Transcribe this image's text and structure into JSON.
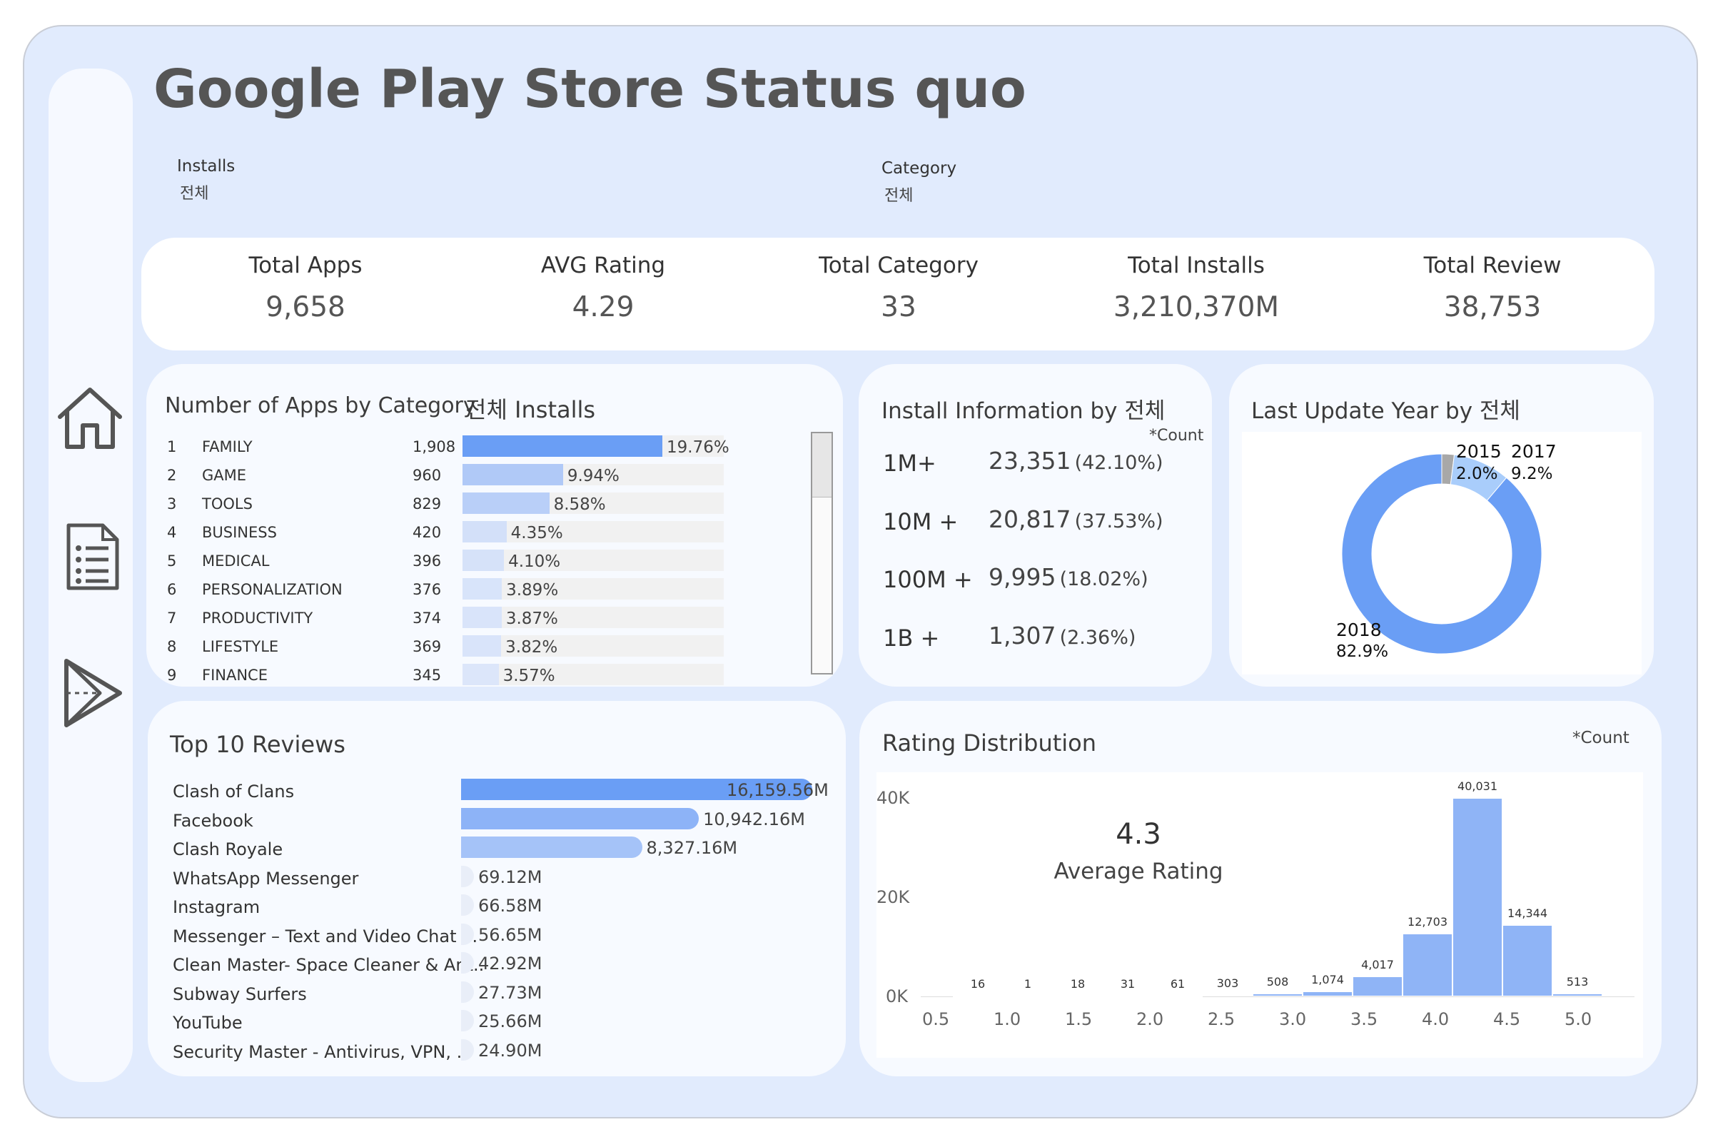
{
  "header": {
    "title": "Google Play Store Status quo"
  },
  "filters": [
    {
      "label": "Installs",
      "value": "전체"
    },
    {
      "label": "Category",
      "value": "전체"
    }
  ],
  "kpis": [
    {
      "label": "Total Apps",
      "value": "9,658"
    },
    {
      "label": "AVG Rating",
      "value": "4.29"
    },
    {
      "label": "Total Category",
      "value": "33"
    },
    {
      "label": "Total Installs",
      "value": "3,210,370M"
    },
    {
      "label": "Total Review",
      "value": "38,753"
    }
  ],
  "sidebar": {
    "icons": [
      "home-icon",
      "list-document-icon",
      "play-store-icon"
    ]
  },
  "category_panel": {
    "title": "Number of Apps by Category",
    "subtitle": "전체 Installs",
    "rows": [
      {
        "rank": "1",
        "name": "FAMILY",
        "count": "1,908",
        "pct_label": "19.76%",
        "pct": 19.76
      },
      {
        "rank": "2",
        "name": "GAME",
        "count": "960",
        "pct_label": "9.94%",
        "pct": 9.94
      },
      {
        "rank": "3",
        "name": "TOOLS",
        "count": "829",
        "pct_label": "8.58%",
        "pct": 8.58
      },
      {
        "rank": "4",
        "name": "BUSINESS",
        "count": "420",
        "pct_label": "4.35%",
        "pct": 4.35
      },
      {
        "rank": "5",
        "name": "MEDICAL",
        "count": "396",
        "pct_label": "4.10%",
        "pct": 4.1
      },
      {
        "rank": "6",
        "name": "PERSONALIZATION",
        "count": "376",
        "pct_label": "3.89%",
        "pct": 3.89
      },
      {
        "rank": "7",
        "name": "PRODUCTIVITY",
        "count": "374",
        "pct_label": "3.87%",
        "pct": 3.87
      },
      {
        "rank": "8",
        "name": "LIFESTYLE",
        "count": "369",
        "pct_label": "3.82%",
        "pct": 3.82
      },
      {
        "rank": "9",
        "name": "FINANCE",
        "count": "345",
        "pct_label": "3.57%",
        "pct": 3.57
      }
    ],
    "colors": [
      "#6a9ef5",
      "#b0c9f7",
      "#b9cff8",
      "#d3e0f9",
      "#d6e2f9",
      "#d8e4fa",
      "#d9e4fa",
      "#d9e4fa",
      "#dce6fa"
    ]
  },
  "install_panel": {
    "title": "Install Information by 전체",
    "note": "*Count",
    "rows": [
      {
        "label": "1M+",
        "value": "23,351",
        "pct": "(42.10%)"
      },
      {
        "label": "10M +",
        "value": "20,817",
        "pct": "(37.53%)"
      },
      {
        "label": "100M +",
        "value": "9,995",
        "pct": "(18.02%)"
      },
      {
        "label": "1B +",
        "value": "1,307",
        "pct": "(2.36%)"
      }
    ]
  },
  "update_panel": {
    "title": "Last Update Year by 전체",
    "slices": [
      {
        "year": "2015",
        "pct_label": "2.0%",
        "pct": 2.0,
        "color": "#a8a8a8"
      },
      {
        "year": "2017",
        "pct_label": "9.2%",
        "pct": 9.2,
        "color": "#a9cdfb"
      },
      {
        "year": "2018",
        "pct_label": "82.9%",
        "pct": 82.9,
        "color": "#6a9ef5"
      }
    ]
  },
  "reviews_panel": {
    "title": "Top 10 Reviews",
    "max_value": 16159.56,
    "rows": [
      {
        "name": "Clash of Clans",
        "value": 16159.56,
        "label": "16,159.56M",
        "color": "#6a9ef5"
      },
      {
        "name": "Facebook",
        "value": 10942.16,
        "label": "10,942.16M",
        "color": "#8db3f7"
      },
      {
        "name": "Clash Royale",
        "value": 8327.16,
        "label": "8,327.16M",
        "color": "#a5c3f8"
      },
      {
        "name": "WhatsApp Messenger",
        "value": 69.12,
        "label": "69.12M",
        "color": "#e9eef8"
      },
      {
        "name": "Instagram",
        "value": 66.58,
        "label": "66.58M",
        "color": "#e9eef8"
      },
      {
        "name": "Messenger – Text and Video Chat f..",
        "value": 56.65,
        "label": "56.65M",
        "color": "#e9eef8"
      },
      {
        "name": "Clean Master- Space Cleaner & Ant..",
        "value": 42.92,
        "label": "42.92M",
        "color": "#e9eef8"
      },
      {
        "name": "Subway Surfers",
        "value": 27.73,
        "label": "27.73M",
        "color": "#e9eef8"
      },
      {
        "name": "YouTube",
        "value": 25.66,
        "label": "25.66M",
        "color": "#e9eef8"
      },
      {
        "name": "Security Master - Antivirus, VPN, ..",
        "value": 24.9,
        "label": "24.90M",
        "color": "#e9eef8"
      }
    ]
  },
  "rating_panel": {
    "title": "Rating Distribution",
    "note": "*Count",
    "avg_value": "4.3",
    "avg_label": "Average Rating"
  },
  "chart_data": {
    "type": "bar",
    "title": "Rating Distribution",
    "xlabel": "",
    "ylabel": "",
    "x_ticks": [
      "0.5",
      "1.0",
      "1.5",
      "2.0",
      "2.5",
      "3.0",
      "3.5",
      "4.0",
      "4.5",
      "5.0"
    ],
    "y_ticks": [
      "40K",
      "20K",
      "0K"
    ],
    "ylim": [
      0,
      40000
    ],
    "x_range": [
      0.5,
      5.0
    ],
    "bins": [
      {
        "x": 0.8,
        "value": 16,
        "label": "16"
      },
      {
        "x": 1.15,
        "value": 1,
        "label": "1"
      },
      {
        "x": 1.5,
        "value": 18,
        "label": "18"
      },
      {
        "x": 1.85,
        "value": 31,
        "label": "31"
      },
      {
        "x": 2.2,
        "value": 61,
        "label": "61"
      },
      {
        "x": 2.55,
        "value": 303,
        "label": "303"
      },
      {
        "x": 2.9,
        "value": 508,
        "label": "508"
      },
      {
        "x": 3.25,
        "value": 1074,
        "label": "1,074"
      },
      {
        "x": 3.6,
        "value": 4017,
        "label": "4,017"
      },
      {
        "x": 3.95,
        "value": 12703,
        "label": "12,703"
      },
      {
        "x": 4.3,
        "value": 40031,
        "label": "40,031"
      },
      {
        "x": 4.65,
        "value": 14344,
        "label": "14,344"
      },
      {
        "x": 5.0,
        "value": 513,
        "label": "513"
      }
    ]
  }
}
